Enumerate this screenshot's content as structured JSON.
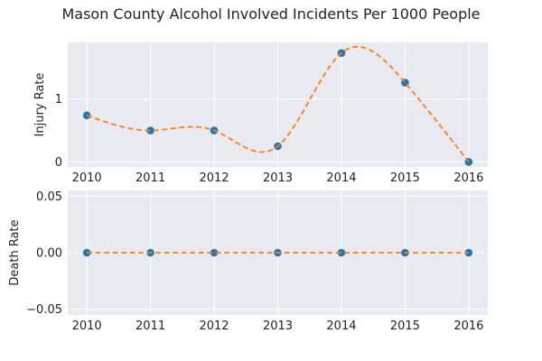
{
  "chart_data": {
    "title": "Mason County Alcohol Involved Incidents Per 1000 People",
    "colors": {
      "background": "#e9e9f2",
      "grid": "#ffffff",
      "marker": "#1f77b4",
      "curve": "#ff7f0e"
    },
    "panels": [
      {
        "type": "line",
        "ylabel": "Injury Rate",
        "x": [
          2010,
          2011,
          2012,
          2013,
          2014,
          2015,
          2016
        ],
        "y": [
          0.74,
          0.5,
          0.5,
          0.25,
          1.73,
          1.26,
          0.0
        ],
        "ylim": [
          -0.08,
          1.9
        ],
        "yticks": [
          0,
          1
        ],
        "ytick_labels": [
          "0",
          "1"
        ],
        "xticks": [
          "2010",
          "2011",
          "2012",
          "2013",
          "2014",
          "2015",
          "2016"
        ],
        "grid": true,
        "curve": "dashed smooth interpolation"
      },
      {
        "type": "line",
        "ylabel": "Death Rate",
        "x": [
          2010,
          2011,
          2012,
          2013,
          2014,
          2015,
          2016
        ],
        "y": [
          0.0,
          0.0,
          0.0,
          0.0,
          0.0,
          0.0,
          0.0
        ],
        "ylim": [
          -0.055,
          0.055
        ],
        "yticks": [
          0.05,
          0.0,
          -0.05
        ],
        "ytick_labels": [
          "0.05",
          "0.00",
          "−0.05"
        ],
        "xticks": [
          "2010",
          "2011",
          "2012",
          "2013",
          "2014",
          "2015",
          "2016"
        ],
        "grid": true,
        "curve": "dashed"
      }
    ]
  }
}
